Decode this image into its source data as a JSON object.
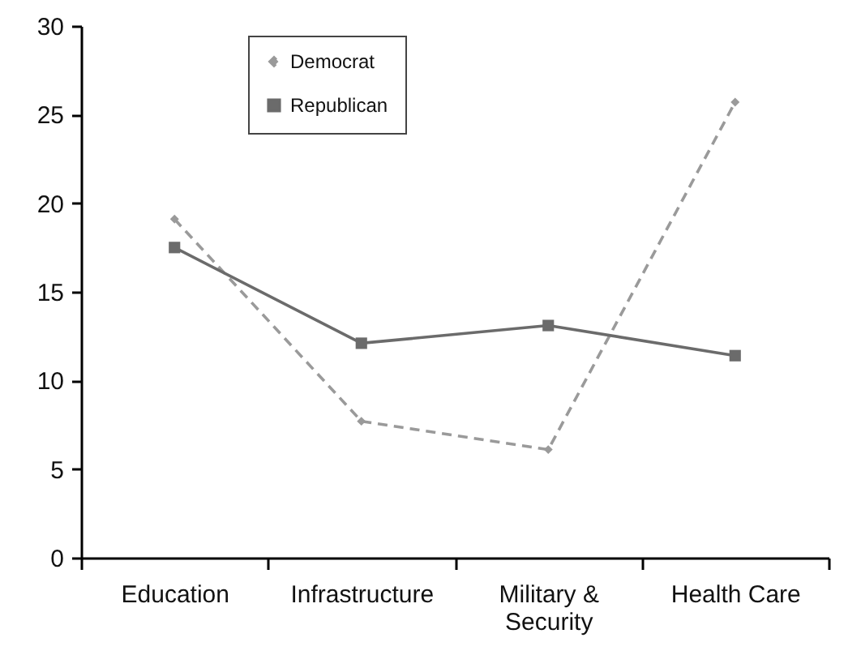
{
  "chart_data": {
    "type": "line",
    "categories": [
      "Education",
      "Infrastructure",
      "Military & Security",
      "Health Care"
    ],
    "series": [
      {
        "name": "Democrat",
        "color": "#9a9a9a",
        "values": [
          19.1,
          7.7,
          6.1,
          25.7
        ],
        "line_style": "dashed",
        "marker": "diamond"
      },
      {
        "name": "Republican",
        "color": "#6b6b6b",
        "values": [
          17.5,
          12.1,
          13.1,
          11.4
        ],
        "line_style": "solid",
        "marker": "square"
      }
    ],
    "ylim": [
      0,
      30
    ],
    "yticks": [
      0,
      5,
      10,
      15,
      20,
      25,
      30
    ],
    "grid": false,
    "legend": "top left"
  }
}
